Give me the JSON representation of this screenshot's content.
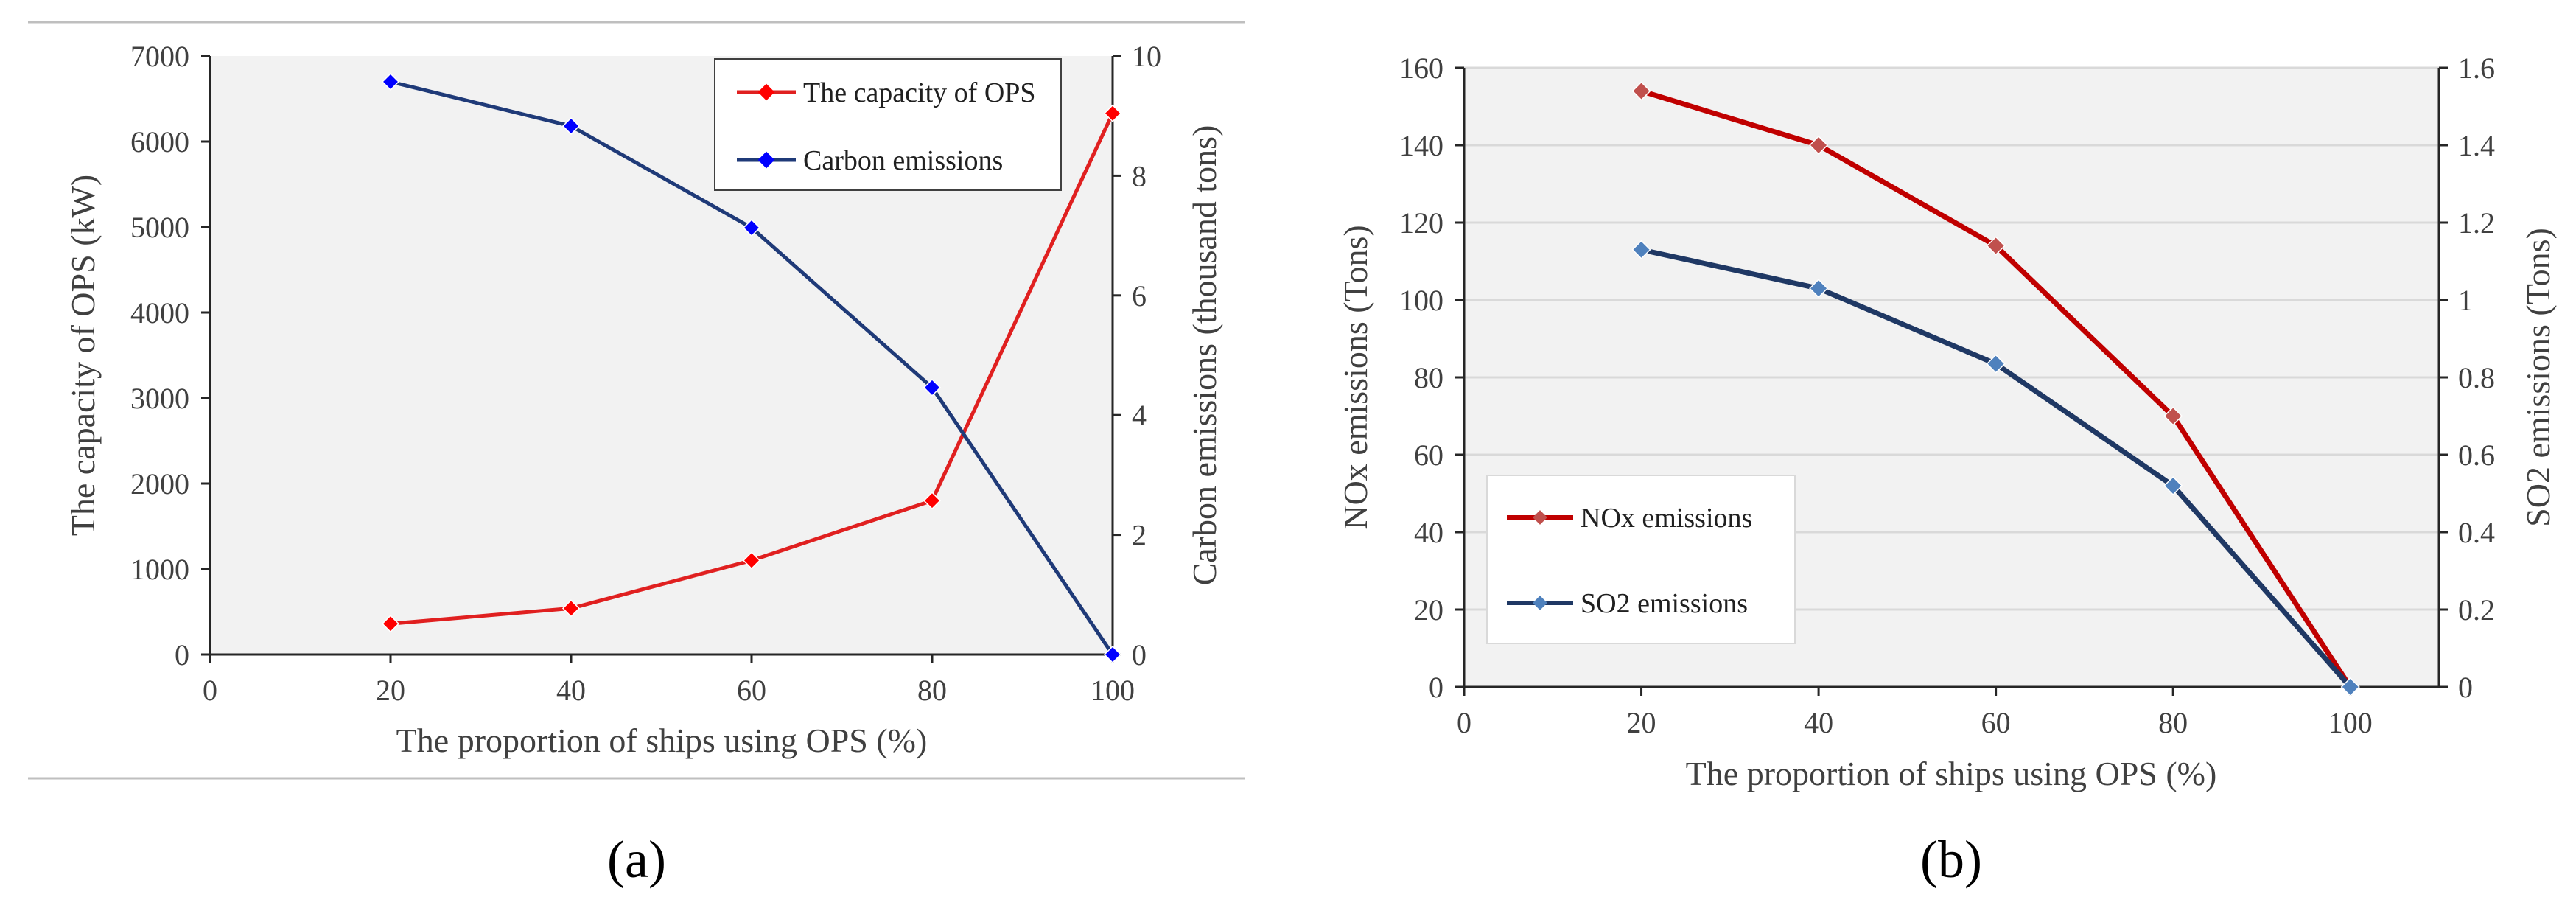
{
  "colors": {
    "a_capacity": "#ff0000",
    "a_capacity_line": "#e02020",
    "a_carbon": "#1f3a78",
    "a_carbon_marker": "#0000ff",
    "b_nox": "#c00000",
    "b_nox_marker": "#c0504d",
    "b_so2": "#1f3864",
    "b_so2_marker": "#4f81bd",
    "plot_bg": "#f2f2f2",
    "grid": "#d9d9d9"
  },
  "chart_data": [
    {
      "id": "a",
      "type": "line",
      "panel_label": "(a)",
      "xlabel": "The proportion of ships using OPS (%)",
      "ylabel_left": "The capacity of OPS (kW)",
      "ylabel_right": "Carbon emissions (thousand tons)",
      "xlim": [
        0,
        100
      ],
      "ylim_left": [
        0,
        7000
      ],
      "ylim_right": [
        0,
        10
      ],
      "x_ticks": [
        0,
        20,
        40,
        60,
        80,
        100
      ],
      "y_ticks_left": [
        0,
        1000,
        2000,
        3000,
        4000,
        5000,
        6000,
        7000
      ],
      "y_ticks_right": [
        0,
        2,
        4,
        6,
        8,
        10
      ],
      "grid": false,
      "legend_position": "top-right",
      "series": [
        {
          "name": "The capacity of OPS",
          "axis": "left",
          "x": [
            20,
            40,
            60,
            80,
            100
          ],
          "values": [
            360,
            540,
            1100,
            1800,
            6330
          ]
        },
        {
          "name": "Carbon emissions",
          "axis": "right",
          "x": [
            20,
            40,
            60,
            80,
            100
          ],
          "values": [
            9.57,
            8.83,
            7.13,
            4.46,
            0
          ]
        }
      ]
    },
    {
      "id": "b",
      "type": "line",
      "panel_label": "(b)",
      "xlabel": "The proportion of ships using OPS (%)",
      "ylabel_left": "NOx emissions (Tons)",
      "ylabel_right": "SO2 emissions (Tons)",
      "xlim": [
        0,
        110
      ],
      "ylim_left": [
        0,
        160
      ],
      "ylim_right": [
        0,
        1.6
      ],
      "x_ticks": [
        0,
        20,
        40,
        60,
        80,
        100
      ],
      "y_ticks_left": [
        0,
        20,
        40,
        60,
        80,
        100,
        120,
        140,
        160
      ],
      "y_ticks_right": [
        0,
        0.2,
        0.4,
        0.6,
        0.8,
        1,
        1.2,
        1.4,
        1.6
      ],
      "grid": true,
      "legend_position": "bottom-left",
      "series": [
        {
          "name": "NOx emissions",
          "axis": "left",
          "x": [
            20,
            40,
            60,
            80,
            100
          ],
          "values": [
            154,
            140,
            114,
            70,
            0
          ]
        },
        {
          "name": "SO2 emissions",
          "axis": "right",
          "x": [
            20,
            40,
            60,
            80,
            100
          ],
          "values": [
            1.13,
            1.03,
            0.835,
            0.52,
            0
          ]
        }
      ]
    }
  ]
}
